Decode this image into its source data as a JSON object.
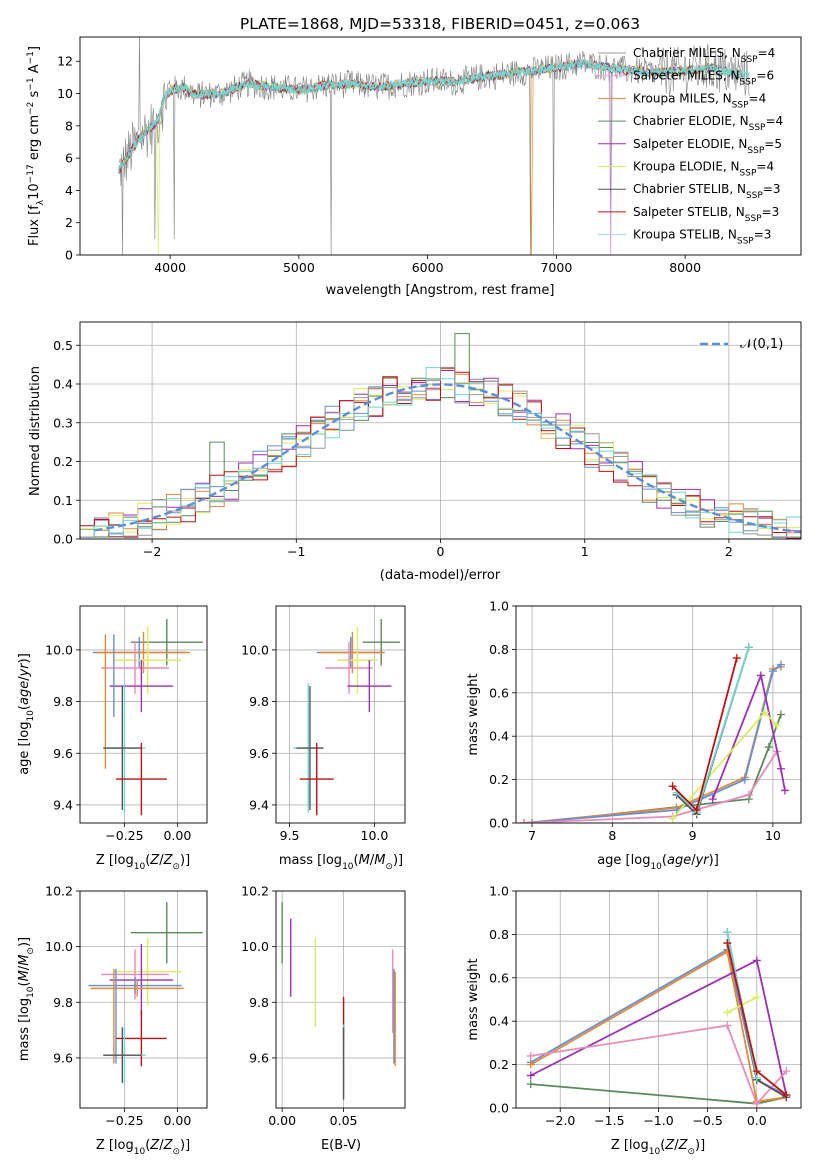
{
  "figure_title": "PLATE=1868, MJD=53318, FIBERID=0451, z=0.063",
  "chart_data": [
    {
      "id": "spectrum",
      "type": "line",
      "title": "PLATE=1868, MJD=53318, FIBERID=0451, z=0.063",
      "xlabel": "wavelength [Angstrom, rest frame]",
      "ylabel": "Flux [f_λ10^-17 erg cm^-2 s^-1 A^-1]",
      "xlim": [
        3300,
        8900
      ],
      "ylim": [
        0,
        13.5
      ],
      "xticks": [
        4000,
        5000,
        6000,
        7000,
        8000
      ],
      "yticks": [
        0,
        2,
        4,
        6,
        8,
        10,
        12
      ],
      "legend_position": "right",
      "continuum": {
        "x": [
          3600,
          3700,
          3800,
          3900,
          3950,
          4000,
          4100,
          4200,
          4400,
          4600,
          4800,
          5000,
          5200,
          5400,
          5600,
          5800,
          6000,
          6200,
          6400,
          6600,
          6800,
          7000,
          7200,
          7400,
          7600,
          7800,
          8000,
          8200,
          8400,
          8500
        ],
        "y": [
          5.2,
          6.5,
          7.6,
          8.2,
          9.6,
          10.2,
          10.4,
          9.9,
          10.0,
          10.6,
          10.4,
          10.2,
          10.5,
          10.6,
          10.4,
          10.6,
          10.8,
          10.7,
          11.0,
          11.2,
          11.4,
          11.6,
          11.9,
          11.6,
          11.4,
          11.3,
          11.4,
          11.6,
          11.2,
          11.2
        ]
      },
      "series": [
        {
          "name": "Chabrier MILES, N_SSP=4",
          "color": "#999999"
        },
        {
          "name": "Salpeter MILES, N_SSP=6",
          "color": "#e3a3f0"
        },
        {
          "name": "Kroupa MILES, N_SSP=4",
          "color": "#e08a3a"
        },
        {
          "name": "Chabrier ELODIE, N_SSP=4",
          "color": "#5a8a5a"
        },
        {
          "name": "Salpeter ELODIE, N_SSP=5",
          "color": "#9b2fb5"
        },
        {
          "name": "Kroupa ELODIE, N_SSP=4",
          "color": "#d8ee60"
        },
        {
          "name": "Chabrier STELIB, N_SSP=3",
          "color": "#555555"
        },
        {
          "name": "Salpeter STELIB, N_SSP=3",
          "color": "#c01010"
        },
        {
          "name": "Kroupa STELIB, N_SSP=3",
          "color": "#9fd8f0"
        }
      ],
      "model_color": "#70d8d0",
      "data_color": "#808080"
    },
    {
      "id": "residuals",
      "type": "line",
      "xlabel": "(data-model)/error",
      "ylabel": "Normed distribution",
      "xlim": [
        -2.5,
        2.5
      ],
      "ylim": [
        0,
        0.56
      ],
      "xticks": [
        -2,
        -1,
        0,
        1,
        2
      ],
      "yticks": [
        0,
        0.1,
        0.2,
        0.3,
        0.4,
        0.5
      ],
      "legend": "𝒩(0,1)",
      "legend_position": "top-right",
      "gaussian": {
        "mean": 0,
        "sigma": 1,
        "color": "#5b8fd6"
      },
      "hist_colors": [
        "#6a8fd0",
        "#e08a3a",
        "#9b2fb5",
        "#5a8a5a",
        "#d8ee60",
        "#c01010",
        "#70d8d0",
        "#999999"
      ]
    },
    {
      "id": "age-vs-Z",
      "type": "scatter",
      "xlabel": "Z [log10(Z/Z⊙)]",
      "ylabel": "age  [log10(age/yr)]",
      "xlim": [
        -0.46,
        0.14
      ],
      "ylim": [
        9.33,
        10.17
      ],
      "xticks": [
        -0.25,
        0.0
      ],
      "xticklabels": [
        "−0.25",
        "0.00"
      ],
      "yticks": [
        9.4,
        9.6,
        9.8,
        10.0
      ],
      "points": [
        {
          "x": -0.05,
          "y": 10.03,
          "xerr": 0.17,
          "yerr": 0.09,
          "color": "#5a8a5a"
        },
        {
          "x": -0.18,
          "y": 9.99,
          "xerr": 0.22,
          "yerr": 0.06,
          "color": "#6a8fd0"
        },
        {
          "x": -0.16,
          "y": 9.99,
          "xerr": 0.22,
          "yerr": 0.08,
          "color": "#e08a3a"
        },
        {
          "x": -0.14,
          "y": 9.96,
          "xerr": 0.16,
          "yerr": 0.13,
          "color": "#d8ee60"
        },
        {
          "x": -0.2,
          "y": 9.93,
          "xerr": 0.16,
          "yerr": 0.1,
          "color": "#e88cb8"
        },
        {
          "x": -0.17,
          "y": 9.86,
          "xerr": 0.15,
          "yerr": 0.1,
          "color": "#9b2fb5"
        },
        {
          "x": -0.3,
          "y": 9.9,
          "xerr": 0.0,
          "yerr": 0.16,
          "color": "#6a8fd0"
        },
        {
          "x": -0.34,
          "y": 9.8,
          "xerr": 0.0,
          "yerr": 0.26,
          "color": "#e08a3a"
        },
        {
          "x": -0.25,
          "y": 9.62,
          "xerr": 0.1,
          "yerr": 0.25,
          "color": "#70d8d0"
        },
        {
          "x": -0.26,
          "y": 9.62,
          "xerr": 0.09,
          "yerr": 0.24,
          "color": "#555555"
        },
        {
          "x": -0.17,
          "y": 9.5,
          "xerr": 0.12,
          "yerr": 0.14,
          "color": "#c01010"
        }
      ]
    },
    {
      "id": "age-vs-mass",
      "type": "scatter",
      "xlabel": "mass [log10(M/M⊙)]",
      "ylabel": "",
      "xlim": [
        9.42,
        10.18
      ],
      "ylim": [
        9.33,
        10.17
      ],
      "xticks": [
        9.5,
        10.0
      ],
      "xticklabels": [
        "9.5",
        "10.0"
      ],
      "yticks": [
        9.4,
        9.6,
        9.8,
        10.0
      ],
      "points": [
        {
          "x": 10.04,
          "y": 10.03,
          "xerr": 0.11,
          "yerr": 0.09,
          "color": "#5a8a5a"
        },
        {
          "x": 9.86,
          "y": 9.99,
          "xerr": 0.2,
          "yerr": 0.06,
          "color": "#6a8fd0"
        },
        {
          "x": 9.87,
          "y": 9.99,
          "xerr": 0.19,
          "yerr": 0.08,
          "color": "#e08a3a"
        },
        {
          "x": 9.9,
          "y": 9.96,
          "xerr": 0.12,
          "yerr": 0.13,
          "color": "#d8ee60"
        },
        {
          "x": 9.85,
          "y": 9.93,
          "xerr": 0.14,
          "yerr": 0.1,
          "color": "#e88cb8"
        },
        {
          "x": 9.97,
          "y": 9.86,
          "xerr": 0.13,
          "yerr": 0.1,
          "color": "#9b2fb5"
        },
        {
          "x": 9.61,
          "y": 9.62,
          "xerr": 0.09,
          "yerr": 0.25,
          "color": "#70d8d0"
        },
        {
          "x": 9.62,
          "y": 9.62,
          "xerr": 0.08,
          "yerr": 0.24,
          "color": "#555555"
        },
        {
          "x": 9.66,
          "y": 9.5,
          "xerr": 0.1,
          "yerr": 0.14,
          "color": "#c01010"
        }
      ]
    },
    {
      "id": "mass-weight-vs-age",
      "type": "line",
      "xlabel": "age  [log10(age/yr)]",
      "ylabel": "mass weight",
      "xlim": [
        6.8,
        10.35
      ],
      "ylim": [
        0,
        1.0
      ],
      "xticks": [
        7,
        8,
        9,
        10
      ],
      "yticks": [
        0,
        0.2,
        0.4,
        0.6,
        0.8,
        1.0
      ],
      "series": [
        {
          "color": "#5a8a5a",
          "x": [
            7.0,
            9.7,
            9.95,
            10.1
          ],
          "y": [
            0.0,
            0.11,
            0.35,
            0.5
          ]
        },
        {
          "color": "#e08a3a",
          "x": [
            6.9,
            8.8,
            9.65,
            10.0,
            10.1
          ],
          "y": [
            0.0,
            0.07,
            0.21,
            0.71,
            0.72
          ]
        },
        {
          "color": "#6a8fd0",
          "x": [
            6.9,
            8.8,
            9.65,
            10.0,
            10.1
          ],
          "y": [
            0.0,
            0.06,
            0.2,
            0.7,
            0.73
          ]
        },
        {
          "color": "#e88cb8",
          "x": [
            6.9,
            8.75,
            9.7,
            10.05
          ],
          "y": [
            0.0,
            0.03,
            0.13,
            0.33
          ]
        },
        {
          "color": "#9b2fb5",
          "x": [
            9.25,
            9.85,
            10.1,
            10.15
          ],
          "y": [
            0.11,
            0.68,
            0.25,
            0.15
          ]
        },
        {
          "color": "#d8ee60",
          "x": [
            8.75,
            9.9,
            10.05
          ],
          "y": [
            0.02,
            0.51,
            0.45
          ]
        },
        {
          "color": "#555555",
          "x": [
            8.8,
            9.05,
            9.7
          ],
          "y": [
            0.13,
            0.04,
            0.81
          ]
        },
        {
          "color": "#70d8d0",
          "x": [
            8.8,
            9.05,
            9.7
          ],
          "y": [
            0.14,
            0.05,
            0.81
          ]
        },
        {
          "color": "#c01010",
          "x": [
            8.75,
            9.05,
            9.55
          ],
          "y": [
            0.17,
            0.06,
            0.76
          ]
        }
      ]
    },
    {
      "id": "mass-vs-Z",
      "type": "scatter",
      "xlabel": "Z [log10(Z/Z⊙)]",
      "ylabel": "mass [log10(M/M⊙)]",
      "xlim": [
        -0.46,
        0.14
      ],
      "ylim": [
        9.42,
        10.2
      ],
      "xticks": [
        -0.25,
        0.0
      ],
      "xticklabels": [
        "−0.25",
        "0.00"
      ],
      "yticks": [
        9.6,
        9.8,
        10.0,
        10.2
      ],
      "points": [
        {
          "x": -0.05,
          "y": 10.05,
          "xerr": 0.17,
          "yerr": 0.11,
          "color": "#5a8a5a"
        },
        {
          "x": -0.14,
          "y": 9.91,
          "xerr": 0.16,
          "yerr": 0.12,
          "color": "#d8ee60"
        },
        {
          "x": -0.2,
          "y": 9.9,
          "xerr": 0.16,
          "yerr": 0.09,
          "color": "#e88cb8"
        },
        {
          "x": -0.17,
          "y": 9.88,
          "xerr": 0.15,
          "yerr": 0.13,
          "color": "#9b2fb5"
        },
        {
          "x": -0.2,
          "y": 9.86,
          "xerr": 0.22,
          "yerr": 0.03,
          "color": "#6a8fd0"
        },
        {
          "x": -0.19,
          "y": 9.85,
          "xerr": 0.22,
          "yerr": 0.03,
          "color": "#e08a3a"
        },
        {
          "x": -0.29,
          "y": 9.75,
          "xerr": 0.0,
          "yerr": 0.17,
          "color": "#6a8fd0"
        },
        {
          "x": -0.3,
          "y": 9.75,
          "xerr": 0.0,
          "yerr": 0.17,
          "color": "#e08a3a"
        },
        {
          "x": -0.17,
          "y": 9.67,
          "xerr": 0.12,
          "yerr": 0.1,
          "color": "#c01010"
        },
        {
          "x": -0.25,
          "y": 9.61,
          "xerr": 0.1,
          "yerr": 0.1,
          "color": "#70d8d0"
        },
        {
          "x": -0.26,
          "y": 9.61,
          "xerr": 0.09,
          "yerr": 0.1,
          "color": "#555555"
        }
      ]
    },
    {
      "id": "mass-vs-EBV",
      "type": "scatter",
      "xlabel": "E(B-V)",
      "ylabel": "",
      "xlim": [
        -0.005,
        0.1
      ],
      "ylim": [
        9.42,
        10.2
      ],
      "xticks": [
        0.0,
        0.05
      ],
      "xticklabels": [
        "0.00",
        "0.05"
      ],
      "yticks": [
        9.6,
        9.8,
        10.0,
        10.2
      ],
      "points": [
        {
          "x": 0.0,
          "y": 10.05,
          "xerr": 0.0,
          "yerr": 0.11,
          "color": "#5a8a5a"
        },
        {
          "x": 0.007,
          "y": 9.96,
          "xerr": 0.0,
          "yerr": 0.14,
          "color": "#9b2fb5"
        },
        {
          "x": 0.027,
          "y": 9.87,
          "xerr": 0.0,
          "yerr": 0.16,
          "color": "#d8ee60"
        },
        {
          "x": 0.05,
          "y": 9.74,
          "xerr": 0.0,
          "yerr": 0.08,
          "color": "#c01010"
        },
        {
          "x": 0.05,
          "y": 9.59,
          "xerr": 0.0,
          "yerr": 0.13,
          "color": "#70d8d0"
        },
        {
          "x": 0.05,
          "y": 9.58,
          "xerr": 0.0,
          "yerr": 0.13,
          "color": "#555555"
        },
        {
          "x": 0.09,
          "y": 9.84,
          "xerr": 0.0,
          "yerr": 0.15,
          "color": "#e88cb8"
        },
        {
          "x": 0.091,
          "y": 9.75,
          "xerr": 0.0,
          "yerr": 0.17,
          "color": "#6a8fd0"
        },
        {
          "x": 0.092,
          "y": 9.74,
          "xerr": 0.0,
          "yerr": 0.17,
          "color": "#e08a3a"
        }
      ]
    },
    {
      "id": "mass-weight-vs-Z",
      "type": "line",
      "xlabel": "Z [log10(Z/Z⊙)]",
      "ylabel": "mass weight",
      "xlim": [
        -2.45,
        0.45
      ],
      "ylim": [
        0,
        1.0
      ],
      "xticks": [
        -2.0,
        -1.5,
        -1.0,
        -0.5,
        0.0
      ],
      "xticklabels": [
        "−2.0",
        "−1.5",
        "−1.0",
        "−0.5",
        "0.0"
      ],
      "yticks": [
        0,
        0.2,
        0.4,
        0.6,
        0.8,
        1.0
      ],
      "series": [
        {
          "color": "#5a8a5a",
          "x": [
            -2.3,
            0.0,
            0.3
          ],
          "y": [
            0.11,
            0.02,
            0.05
          ]
        },
        {
          "color": "#6a8fd0",
          "x": [
            -2.3,
            -0.3,
            0.0,
            0.3
          ],
          "y": [
            0.21,
            0.73,
            0.13,
            0.06
          ]
        },
        {
          "color": "#e08a3a",
          "x": [
            -2.3,
            -0.3,
            0.0,
            0.3
          ],
          "y": [
            0.2,
            0.72,
            0.03,
            0.05
          ]
        },
        {
          "color": "#9b2fb5",
          "x": [
            -2.3,
            0.0,
            0.3
          ],
          "y": [
            0.15,
            0.68,
            0.06
          ]
        },
        {
          "color": "#e88cb8",
          "x": [
            -2.3,
            -0.3,
            0.0,
            0.3
          ],
          "y": [
            0.24,
            0.38,
            0.02,
            0.17
          ]
        },
        {
          "color": "#d8ee60",
          "x": [
            -0.3,
            0.0
          ],
          "y": [
            0.44,
            0.51
          ]
        },
        {
          "color": "#555555",
          "x": [
            -0.3,
            0.0,
            0.3
          ],
          "y": [
            0.81,
            0.13,
            0.05
          ]
        },
        {
          "color": "#70d8d0",
          "x": [
            -0.3,
            0.0
          ],
          "y": [
            0.81,
            0.14
          ]
        },
        {
          "color": "#c01010",
          "x": [
            -0.3,
            0.0,
            0.3
          ],
          "y": [
            0.76,
            0.17,
            0.06
          ]
        }
      ]
    }
  ]
}
